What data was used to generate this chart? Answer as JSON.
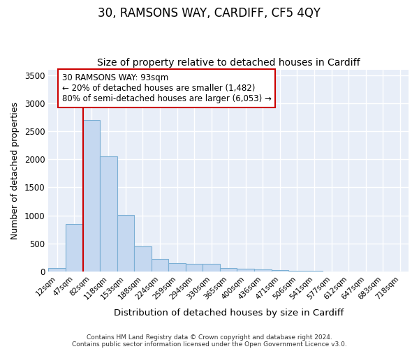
{
  "title": "30, RAMSONS WAY, CARDIFF, CF5 4QY",
  "subtitle": "Size of property relative to detached houses in Cardiff",
  "xlabel": "Distribution of detached houses by size in Cardiff",
  "ylabel": "Number of detached properties",
  "categories": [
    "12sqm",
    "47sqm",
    "82sqm",
    "118sqm",
    "153sqm",
    "188sqm",
    "224sqm",
    "259sqm",
    "294sqm",
    "330sqm",
    "365sqm",
    "400sqm",
    "436sqm",
    "471sqm",
    "506sqm",
    "541sqm",
    "577sqm",
    "612sqm",
    "647sqm",
    "683sqm",
    "718sqm"
  ],
  "bar_heights": [
    60,
    850,
    2700,
    2050,
    1010,
    450,
    220,
    155,
    135,
    135,
    60,
    55,
    35,
    30,
    10,
    10,
    5,
    5,
    0,
    0,
    0
  ],
  "bar_color": "#c5d8f0",
  "bar_edgecolor": "#7bafd4",
  "bar_linewidth": 0.8,
  "vline_x": 2.0,
  "vline_color": "#cc0000",
  "annotation_text": "30 RAMSONS WAY: 93sqm\n← 20% of detached houses are smaller (1,482)\n80% of semi-detached houses are larger (6,053) →",
  "annotation_box_edgecolor": "#cc0000",
  "annotation_box_facecolor": "#ffffff",
  "ylim": [
    0,
    3600
  ],
  "yticks": [
    0,
    500,
    1000,
    1500,
    2000,
    2500,
    3000,
    3500
  ],
  "footer_line1": "Contains HM Land Registry data © Crown copyright and database right 2024.",
  "footer_line2": "Contains public sector information licensed under the Open Government Licence v3.0.",
  "title_fontsize": 12,
  "subtitle_fontsize": 10,
  "fig_bg_color": "#ffffff",
  "plot_bg_color": "#e8eef8"
}
